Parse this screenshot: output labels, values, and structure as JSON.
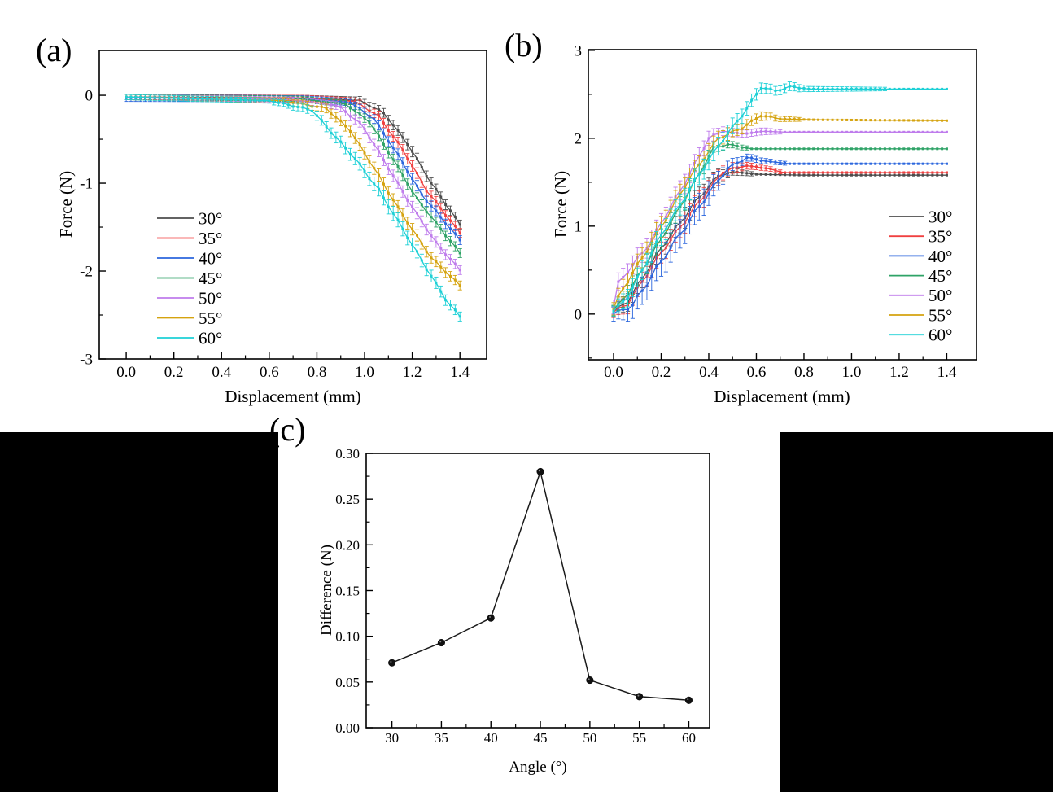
{
  "figure": {
    "background": "#ffffff",
    "redaction_color": "#000000"
  },
  "chart_data": [
    {
      "id": "a",
      "panel_label": "(a)",
      "type": "line",
      "title": "",
      "xlabel": "Displacement (mm)",
      "ylabel": "Force (N)",
      "xlim": [
        -0.113,
        1.512
      ],
      "ylim": [
        -3,
        0.51
      ],
      "x_ticks": {
        "values": [
          0.0,
          0.2,
          0.4,
          0.6,
          0.8,
          1.0,
          1.2,
          1.4
        ],
        "labels": [
          "0.0",
          "0.2",
          "0.4",
          "0.6",
          "0.8",
          "1.0",
          "1.2",
          "1.4"
        ],
        "minor": [
          0.1,
          0.3,
          0.5,
          0.7,
          0.9,
          1.1,
          1.3
        ]
      },
      "y_ticks": {
        "values": [
          0,
          -1,
          -2,
          -3
        ],
        "labels": [
          "0",
          "-1",
          "-2",
          "-3"
        ],
        "minor": [
          -0.5,
          -1.5,
          -2.5
        ]
      },
      "grid": false,
      "legend": true,
      "legend_position": "inside-left",
      "marker": "square",
      "marker_step": 0.02,
      "series": [
        {
          "name": "30°",
          "color": "#4d4d4d",
          "points": [
            [
              0,
              -0.02,
              0.03
            ],
            [
              0.75,
              -0.03,
              0.03
            ],
            [
              0.98,
              -0.06,
              0.04
            ],
            [
              1.08,
              -0.2,
              0.05
            ],
            [
              1.18,
              -0.55,
              0.06
            ],
            [
              1.28,
              -1.0,
              0.06
            ],
            [
              1.41,
              -1.51,
              0.05
            ]
          ]
        },
        {
          "name": "35°",
          "color": "#f04040",
          "points": [
            [
              0,
              -0.02,
              0.03
            ],
            [
              0.75,
              -0.03,
              0.03
            ],
            [
              0.96,
              -0.07,
              0.04
            ],
            [
              1.06,
              -0.24,
              0.05
            ],
            [
              1.16,
              -0.62,
              0.06
            ],
            [
              1.26,
              -1.08,
              0.06
            ],
            [
              1.41,
              -1.6,
              0.05
            ]
          ]
        },
        {
          "name": "40°",
          "color": "#2b66dd",
          "points": [
            [
              0,
              -0.03,
              0.04
            ],
            [
              0.74,
              -0.04,
              0.035
            ],
            [
              0.94,
              -0.08,
              0.04
            ],
            [
              1.04,
              -0.27,
              0.05
            ],
            [
              1.14,
              -0.68,
              0.06
            ],
            [
              1.24,
              -1.13,
              0.06
            ],
            [
              1.41,
              -1.68,
              0.05
            ]
          ]
        },
        {
          "name": "45°",
          "color": "#2fa367",
          "points": [
            [
              0,
              -0.02,
              0.03
            ],
            [
              0.73,
              -0.04,
              0.03
            ],
            [
              0.92,
              -0.1,
              0.04
            ],
            [
              1.02,
              -0.3,
              0.05
            ],
            [
              1.12,
              -0.73,
              0.06
            ],
            [
              1.22,
              -1.18,
              0.06
            ],
            [
              1.41,
              -1.83,
              0.05
            ]
          ]
        },
        {
          "name": "50°",
          "color": "#bf7cec",
          "points": [
            [
              0,
              -0.02,
              0.03
            ],
            [
              0.7,
              -0.05,
              0.03
            ],
            [
              0.89,
              -0.12,
              0.045
            ],
            [
              0.99,
              -0.34,
              0.055
            ],
            [
              1.09,
              -0.78,
              0.065
            ],
            [
              1.19,
              -1.23,
              0.065
            ],
            [
              1.3,
              -1.68,
              0.06
            ],
            [
              1.41,
              -2.02,
              0.05
            ]
          ]
        },
        {
          "name": "55°",
          "color": "#d5a30f",
          "points": [
            [
              0,
              -0.02,
              0.03
            ],
            [
              0.66,
              -0.06,
              0.03
            ],
            [
              0.84,
              -0.15,
              0.05
            ],
            [
              0.94,
              -0.4,
              0.06
            ],
            [
              1.04,
              -0.83,
              0.07
            ],
            [
              1.14,
              -1.28,
              0.07
            ],
            [
              1.28,
              -1.85,
              0.06
            ],
            [
              1.41,
              -2.19,
              0.05
            ]
          ]
        },
        {
          "name": "60°",
          "color": "#1dd0d6",
          "points": [
            [
              0,
              -0.02,
              0.03
            ],
            [
              0.6,
              -0.06,
              0.03
            ],
            [
              0.78,
              -0.17,
              0.05
            ],
            [
              0.86,
              -0.42,
              0.06
            ],
            [
              0.96,
              -0.72,
              0.07
            ],
            [
              1.06,
              -1.08,
              0.08
            ],
            [
              1.16,
              -1.52,
              0.08
            ],
            [
              1.26,
              -1.97,
              0.07
            ],
            [
              1.34,
              -2.32,
              0.06
            ],
            [
              1.41,
              -2.55,
              0.05
            ]
          ]
        }
      ]
    },
    {
      "id": "b",
      "panel_label": "(b)",
      "type": "line",
      "title": "",
      "xlabel": "Displacement (mm)",
      "ylabel": "Force (N)",
      "xlim": [
        -0.106,
        1.525
      ],
      "ylim": [
        -0.52,
        3.008
      ],
      "x_ticks": {
        "values": [
          0.0,
          0.2,
          0.4,
          0.6,
          0.8,
          1.0,
          1.2,
          1.4
        ],
        "labels": [
          "0.0",
          "0.2",
          "0.4",
          "0.6",
          "0.8",
          "1.0",
          "1.2",
          "1.4"
        ],
        "minor": [
          0.1,
          0.3,
          0.5,
          0.7,
          0.9,
          1.1,
          1.3
        ]
      },
      "y_ticks": {
        "values": [
          0,
          1,
          2,
          3
        ],
        "labels": [
          "0",
          "1",
          "2",
          "3"
        ],
        "minor": [
          -0.5,
          0.5,
          1.5,
          2.5
        ]
      },
      "grid": false,
      "legend": true,
      "legend_position": "inside-right-bottom",
      "marker": "square",
      "marker_step": 0.02,
      "series": [
        {
          "name": "30°",
          "color": "#4d4d4d",
          "points": [
            [
              0,
              0.03,
              0.06
            ],
            [
              0.06,
              0.15,
              0.1
            ],
            [
              0.2,
              0.75,
              0.12
            ],
            [
              0.35,
              1.3,
              0.12
            ],
            [
              0.44,
              1.57,
              0.08
            ],
            [
              0.5,
              1.62,
              0.04
            ],
            [
              0.6,
              1.59,
              0.02
            ],
            [
              0.8,
              1.58,
              0.012
            ],
            [
              1.41,
              1.58,
              0.012
            ]
          ]
        },
        {
          "name": "35°",
          "color": "#f04040",
          "points": [
            [
              0,
              0.02,
              0.06
            ],
            [
              0.06,
              0.12,
              0.1
            ],
            [
              0.2,
              0.7,
              0.12
            ],
            [
              0.36,
              1.28,
              0.12
            ],
            [
              0.46,
              1.62,
              0.08
            ],
            [
              0.55,
              1.69,
              0.04
            ],
            [
              0.62,
              1.67,
              0.03
            ],
            [
              0.72,
              1.61,
              0.02
            ],
            [
              1.41,
              1.61,
              0.012
            ]
          ]
        },
        {
          "name": "40°",
          "color": "#2b66dd",
          "points": [
            [
              0,
              0.0,
              0.08
            ],
            [
              0.08,
              0.1,
              0.15
            ],
            [
              0.22,
              0.68,
              0.17
            ],
            [
              0.38,
              1.3,
              0.15
            ],
            [
              0.48,
              1.66,
              0.08
            ],
            [
              0.56,
              1.78,
              0.04
            ],
            [
              0.64,
              1.74,
              0.03
            ],
            [
              0.74,
              1.71,
              0.02
            ],
            [
              1.41,
              1.71,
              0.012
            ]
          ]
        },
        {
          "name": "45°",
          "color": "#2fa367",
          "points": [
            [
              0,
              0.04,
              0.06
            ],
            [
              0.05,
              0.2,
              0.1
            ],
            [
              0.2,
              0.85,
              0.12
            ],
            [
              0.34,
              1.5,
              0.11
            ],
            [
              0.42,
              1.89,
              0.06
            ],
            [
              0.48,
              1.93,
              0.04
            ],
            [
              0.58,
              1.88,
              0.02
            ],
            [
              1.41,
              1.88,
              0.012
            ]
          ]
        },
        {
          "name": "50°",
          "color": "#bf7cec",
          "points": [
            [
              0,
              0.08,
              0.08
            ],
            [
              0.02,
              0.35,
              0.1
            ],
            [
              0.15,
              0.8,
              0.11
            ],
            [
              0.3,
              1.5,
              0.11
            ],
            [
              0.4,
              2.0,
              0.08
            ],
            [
              0.46,
              2.08,
              0.05
            ],
            [
              0.55,
              2.05,
              0.04
            ],
            [
              0.63,
              2.08,
              0.04
            ],
            [
              0.72,
              2.07,
              0.02
            ],
            [
              1.41,
              2.07,
              0.012
            ]
          ]
        },
        {
          "name": "55°",
          "color": "#d5a30f",
          "points": [
            [
              0,
              0.06,
              0.07
            ],
            [
              0.03,
              0.25,
              0.1
            ],
            [
              0.18,
              0.9,
              0.12
            ],
            [
              0.32,
              1.55,
              0.11
            ],
            [
              0.44,
              2.0,
              0.08
            ],
            [
              0.54,
              2.12,
              0.06
            ],
            [
              0.62,
              2.26,
              0.05
            ],
            [
              0.7,
              2.22,
              0.03
            ],
            [
              0.85,
              2.21,
              0.015
            ],
            [
              1.41,
              2.2,
              0.012
            ]
          ]
        },
        {
          "name": "60°",
          "color": "#1dd0d6",
          "points": [
            [
              0,
              0.03,
              0.06
            ],
            [
              0.06,
              0.2,
              0.1
            ],
            [
              0.2,
              0.9,
              0.12
            ],
            [
              0.35,
              1.55,
              0.12
            ],
            [
              0.45,
              1.95,
              0.1
            ],
            [
              0.55,
              2.3,
              0.08
            ],
            [
              0.62,
              2.58,
              0.06
            ],
            [
              0.68,
              2.54,
              0.05
            ],
            [
              0.75,
              2.59,
              0.05
            ],
            [
              0.82,
              2.56,
              0.03
            ],
            [
              1.41,
              2.56,
              0.012
            ]
          ]
        }
      ]
    },
    {
      "id": "c",
      "panel_label": "(c)",
      "type": "line",
      "title": "",
      "xlabel": "Angle (°)",
      "ylabel": "Difference (N)",
      "xlim": [
        27.4,
        62.1
      ],
      "ylim": [
        0,
        0.3
      ],
      "x_ticks": {
        "values": [
          30,
          35,
          40,
          45,
          50,
          55,
          60
        ],
        "labels": [
          "30",
          "35",
          "40",
          "45",
          "50",
          "55",
          "60"
        ],
        "minor": [
          32.5,
          37.5,
          42.5,
          47.5,
          52.5,
          57.5
        ]
      },
      "y_ticks": {
        "values": [
          0.0,
          0.05,
          0.1,
          0.15,
          0.2,
          0.25,
          0.3
        ],
        "labels": [
          "0.00",
          "0.05",
          "0.10",
          "0.15",
          "0.20",
          "0.25",
          "0.30"
        ],
        "minor": [
          0.025,
          0.075,
          0.125,
          0.175,
          0.225,
          0.275
        ]
      },
      "grid": false,
      "legend": false,
      "marker": "circle",
      "marker_step": null,
      "series": [
        {
          "name": "Difference",
          "color": "#1a1a1a",
          "points": [
            [
              30,
              0.071
            ],
            [
              35,
              0.093
            ],
            [
              40,
              0.12
            ],
            [
              45,
              0.28
            ],
            [
              50,
              0.052
            ],
            [
              55,
              0.034
            ],
            [
              60,
              0.03
            ]
          ]
        }
      ]
    }
  ]
}
